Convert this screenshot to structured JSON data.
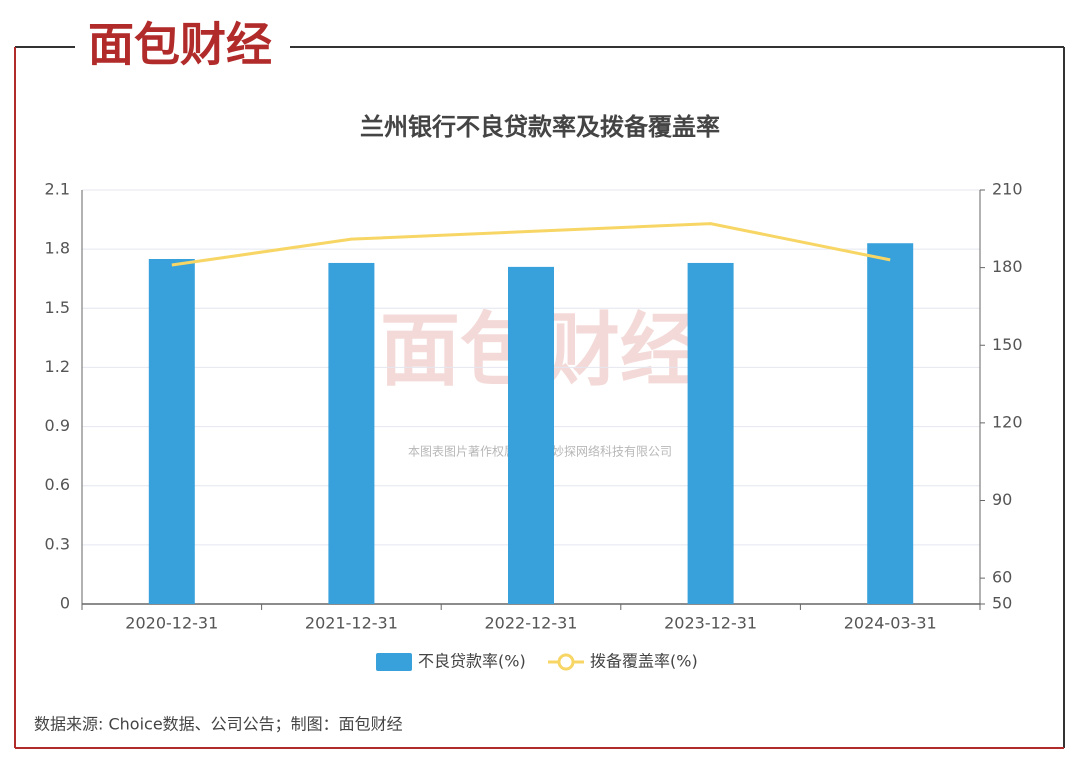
{
  "logo": "面包财经",
  "chart_data": {
    "type": "bar",
    "title": "兰州银行不良贷款率及拨备覆盖率",
    "categories": [
      "2020-12-31",
      "2021-12-31",
      "2022-12-31",
      "2023-12-31",
      "2024-03-31"
    ],
    "series": [
      {
        "name": "不良贷款率(%)",
        "type": "bar",
        "color": "#38a1db",
        "values": [
          1.75,
          1.73,
          1.71,
          1.73,
          1.83
        ]
      },
      {
        "name": "拨备覆盖率(%)",
        "type": "line",
        "axis": "y2",
        "color": "#f7d665",
        "values": [
          181,
          191,
          194,
          197,
          183
        ]
      }
    ],
    "ylim": [
      0,
      2.1
    ],
    "yticks": [
      0,
      0.3,
      0.6,
      0.9,
      1.2,
      1.5,
      1.8,
      2.1
    ],
    "y2lim": [
      50,
      210
    ],
    "y2ticks": [
      50,
      60,
      90,
      120,
      150,
      180,
      210
    ],
    "grid": true,
    "legend": "bottom"
  },
  "watermark": "本图表图片著作权属于上海妙探网络科技有限公司",
  "source": "数据来源: Choice数据、公司公告；制图：面包财经"
}
